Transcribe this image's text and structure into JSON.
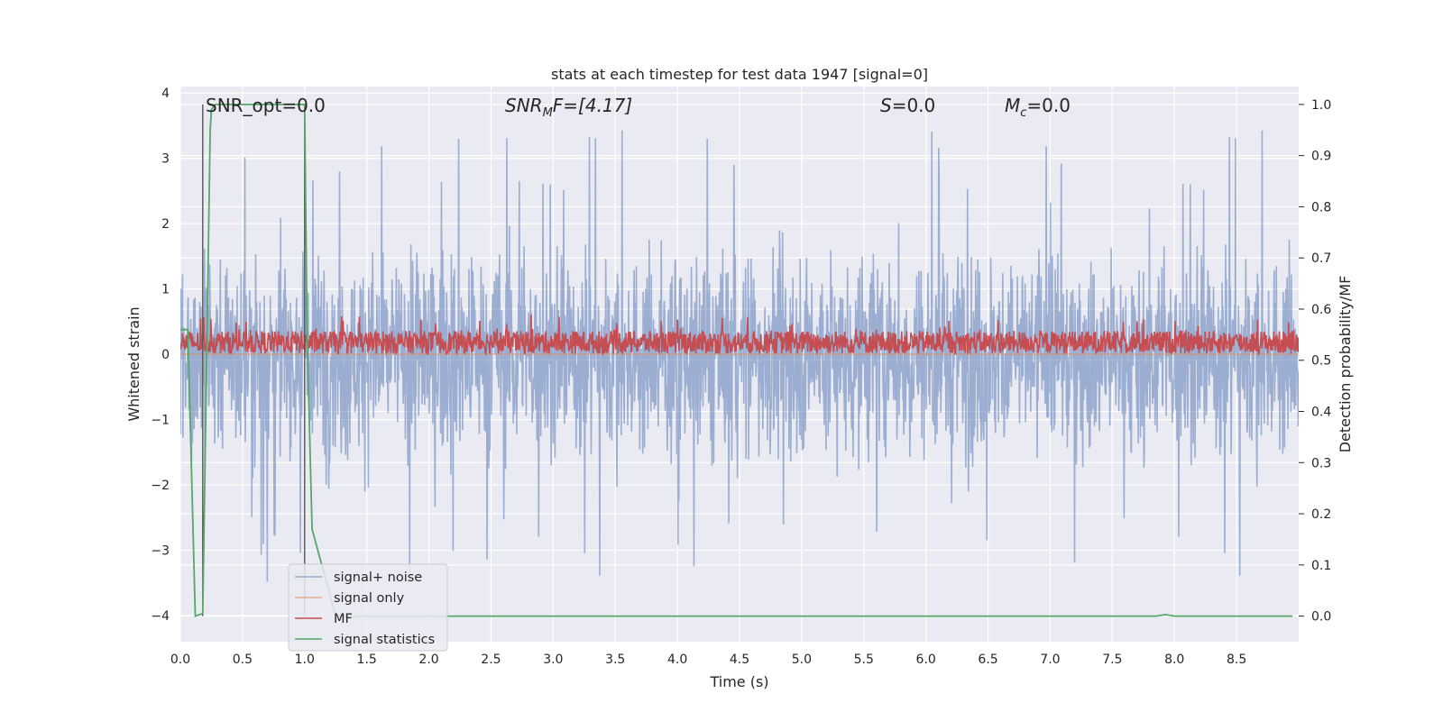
{
  "chart_data": {
    "type": "line",
    "title": "stats at each timestep for test data 1947 [signal=0]",
    "xlabel": "Time (s)",
    "ylabel": "Whitened strain",
    "y2label": "Detection probability/MF",
    "xlim": [
      0.0,
      9.0
    ],
    "ylim": [
      -4.4,
      4.1
    ],
    "y2lim": [
      -0.05,
      1.035
    ],
    "xticks": [
      "0.0",
      "0.5",
      "1.0",
      "1.5",
      "2.0",
      "2.5",
      "3.0",
      "3.5",
      "4.0",
      "4.5",
      "5.0",
      "5.5",
      "6.0",
      "6.5",
      "7.0",
      "7.5",
      "8.0",
      "8.5"
    ],
    "yticks": [
      "−4",
      "−3",
      "−2",
      "−1",
      "0",
      "1",
      "2",
      "3",
      "4"
    ],
    "y2ticks": [
      "0.0",
      "0.1",
      "0.2",
      "0.3",
      "0.4",
      "0.5",
      "0.6",
      "0.7",
      "0.8",
      "0.9",
      "1.0"
    ],
    "grid": true,
    "legend_position": "lower-left",
    "annotations": {
      "snr_opt": "SNR_opt=0.0",
      "snr_mf_base": "SNR",
      "snr_mf_sub": "M",
      "snr_mf_rest": "F=[4.17]",
      "s_base": "S",
      "s_rest": "=0.0",
      "mc_base": "M",
      "mc_sub": "c",
      "mc_rest": "=0.0"
    },
    "series": [
      {
        "name": "signal+ noise",
        "color": "#4c72b0",
        "axis": "left",
        "description_range": [
          -3.8,
          3.7
        ],
        "x_range": [
          0.0,
          9.0
        ]
      },
      {
        "name": "signal only",
        "color": "#dd8452",
        "axis": "left",
        "x": [
          0.0,
          9.0
        ],
        "y": [
          0.0,
          0.0
        ]
      },
      {
        "name": "MF",
        "color": "#c44e52",
        "axis": "right",
        "x_range": [
          0.0,
          9.0
        ],
        "y_range": [
          0.52,
          0.6
        ]
      },
      {
        "name": "signal statistics",
        "color": "#55a868",
        "axis": "right",
        "x": [
          0.0,
          0.06,
          0.12,
          0.18,
          0.24,
          0.25,
          0.28,
          0.5,
          0.75,
          0.98,
          1.0,
          1.02,
          1.06,
          1.25,
          1.5,
          2.0,
          3.0,
          4.0,
          5.0,
          6.0,
          7.0,
          7.85,
          7.93,
          8.0,
          8.5,
          8.95
        ],
        "y": [
          0.56,
          0.56,
          0.0,
          0.005,
          0.95,
          0.99,
          1.0,
          1.0,
          1.0,
          1.0,
          1.0,
          0.55,
          0.17,
          0.0,
          0.0,
          0.0,
          0.0,
          0.0,
          0.0,
          0.0,
          0.0,
          0.0,
          0.003,
          0.0,
          0.0,
          0.0
        ]
      }
    ],
    "vlines": [
      {
        "x": 0.18,
        "color": "#555555"
      },
      {
        "x": 1.0,
        "color": "#555555"
      }
    ]
  }
}
